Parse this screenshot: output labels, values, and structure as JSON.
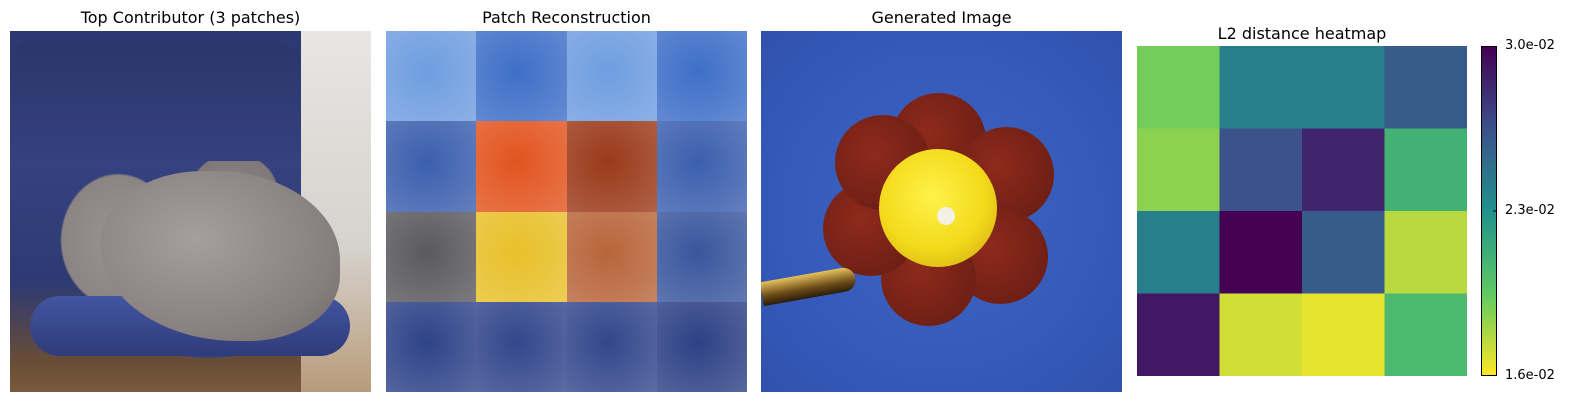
{
  "panels": {
    "panel1_title": "Top Contributor (3 patches)",
    "panel2_title": "Patch Reconstruction",
    "panel3_title": "Generated Image",
    "panel4_title": "L2 distance heatmap"
  },
  "patch_grid": {
    "rows": 4,
    "cols": 4,
    "patch_colors": [
      [
        "#6f9de0",
        "#3f6fc8",
        "#6f9de0",
        "#3f6fc8"
      ],
      [
        "#3c5fae",
        "#e2541f",
        "#9b3a1a",
        "#3c5fae"
      ],
      [
        "#5b5a5e",
        "#e8c02a",
        "#b8653a",
        "#3a579e"
      ],
      [
        "#2f4389",
        "#34478c",
        "#34478c",
        "#2e4185"
      ]
    ]
  },
  "chart_data": {
    "type": "heatmap",
    "title": "L2 distance heatmap",
    "rows": 4,
    "cols": 4,
    "values": [
      [
        0.019,
        0.024,
        0.024,
        0.026
      ],
      [
        0.0185,
        0.0265,
        0.0285,
        0.021
      ],
      [
        0.024,
        0.03,
        0.026,
        0.0175
      ],
      [
        0.029,
        0.017,
        0.0165,
        0.0205
      ]
    ],
    "vmin": 0.016,
    "vmax": 0.03,
    "colormap": "viridis_r",
    "colorbar": {
      "placement": "right",
      "tick_labels": [
        "3.0e-02",
        "2.3e-02",
        "1.6e-02"
      ],
      "tick_values": [
        0.03,
        0.023,
        0.016
      ]
    },
    "grid": false
  }
}
